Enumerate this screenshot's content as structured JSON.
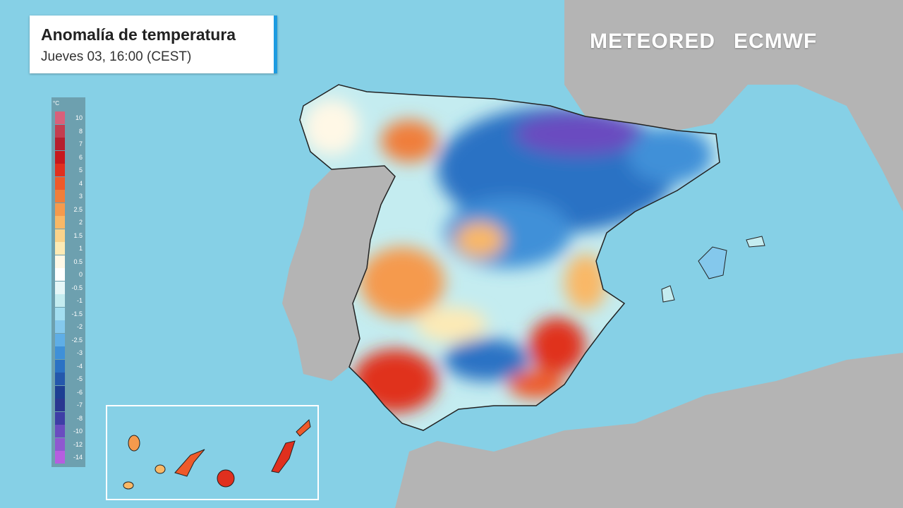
{
  "header": {
    "title": "Anomalía de temperatura",
    "subtitle": "Jueves 03, 16:00 (CEST)"
  },
  "logos": [
    "METEORED",
    "ECMWF"
  ],
  "legend": {
    "unit": "°C",
    "items": [
      {
        "label": "10",
        "color": "#d8607a"
      },
      {
        "label": "8",
        "color": "#c43d4f"
      },
      {
        "label": "7",
        "color": "#b51f2e"
      },
      {
        "label": "6",
        "color": "#c7181c"
      },
      {
        "label": "5",
        "color": "#e0301e"
      },
      {
        "label": "4",
        "color": "#ee5a2a"
      },
      {
        "label": "3",
        "color": "#f07e3a"
      },
      {
        "label": "2.5",
        "color": "#f59a4d"
      },
      {
        "label": "2",
        "color": "#f9b866"
      },
      {
        "label": "1.5",
        "color": "#fbd38b"
      },
      {
        "label": "1",
        "color": "#fdeab5"
      },
      {
        "label": "0.5",
        "color": "#fff8e6"
      },
      {
        "label": "0",
        "color": "#ffffff"
      },
      {
        "label": "-0.5",
        "color": "#e6f6f7"
      },
      {
        "label": "-1",
        "color": "#c4ecf0"
      },
      {
        "label": "-1.5",
        "color": "#a3def0"
      },
      {
        "label": "-2",
        "color": "#84c8ec"
      },
      {
        "label": "-2.5",
        "color": "#5faee6"
      },
      {
        "label": "-3",
        "color": "#3f90d8"
      },
      {
        "label": "-4",
        "color": "#2b72c4"
      },
      {
        "label": "-5",
        "color": "#2458ac"
      },
      {
        "label": "-6",
        "color": "#1d3f93"
      },
      {
        "label": "-7",
        "color": "#2a3790"
      },
      {
        "label": "-8",
        "color": "#3e3ea6"
      },
      {
        "label": "-10",
        "color": "#6a4cc0"
      },
      {
        "label": "-12",
        "color": "#8f58d0"
      },
      {
        "label": "-14",
        "color": "#b65de0"
      }
    ]
  }
}
